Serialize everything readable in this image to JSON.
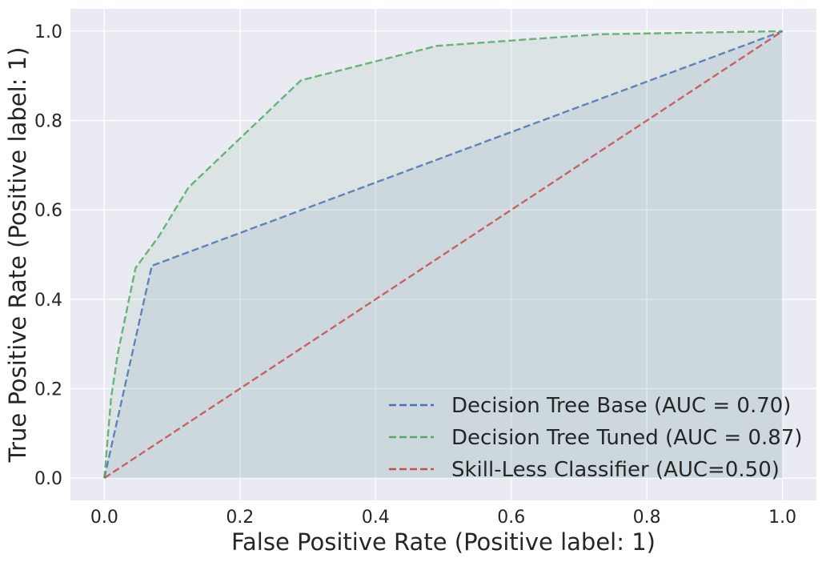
{
  "chart_data": {
    "type": "line",
    "title": "",
    "xlabel": "False Positive Rate (Positive label: 1)",
    "ylabel": "True Positive Rate (Positive label: 1)",
    "xlim": [
      -0.05,
      1.05
    ],
    "ylim": [
      -0.05,
      1.05
    ],
    "xticks": [
      0.0,
      0.2,
      0.4,
      0.6,
      0.8,
      1.0
    ],
    "yticks": [
      0.0,
      0.2,
      0.4,
      0.6,
      0.8,
      1.0
    ],
    "xtick_labels": [
      "0.0",
      "0.2",
      "0.4",
      "0.6",
      "0.8",
      "1.0"
    ],
    "ytick_labels": [
      "0.0",
      "0.2",
      "0.4",
      "0.6",
      "0.8",
      "1.0"
    ],
    "grid": true,
    "legend_position": "bottom-right",
    "background_color": "#eaeaf2",
    "series": [
      {
        "name": "Decision Tree Base (AUC = 0.70)",
        "color": "#4c72b0",
        "style": "dashed",
        "fill_under": true,
        "x": [
          0.0,
          0.07,
          1.0
        ],
        "y": [
          0.0,
          0.475,
          1.0
        ]
      },
      {
        "name": "Decision Tree Tuned (AUC = 0.87)",
        "color": "#55a868",
        "style": "dashed",
        "fill_under": true,
        "x": [
          0.0,
          0.01,
          0.02,
          0.046,
          0.08,
          0.124,
          0.29,
          0.49,
          0.73,
          1.0
        ],
        "y": [
          0.0,
          0.18,
          0.28,
          0.47,
          0.54,
          0.65,
          0.89,
          0.967,
          0.993,
          1.0
        ]
      },
      {
        "name": "Skill-Less Classifier (AUC=0.50)",
        "color": "#c44e52",
        "style": "dashed",
        "fill_under": false,
        "x": [
          0.0,
          1.0
        ],
        "y": [
          0.0,
          1.0
        ]
      }
    ]
  }
}
